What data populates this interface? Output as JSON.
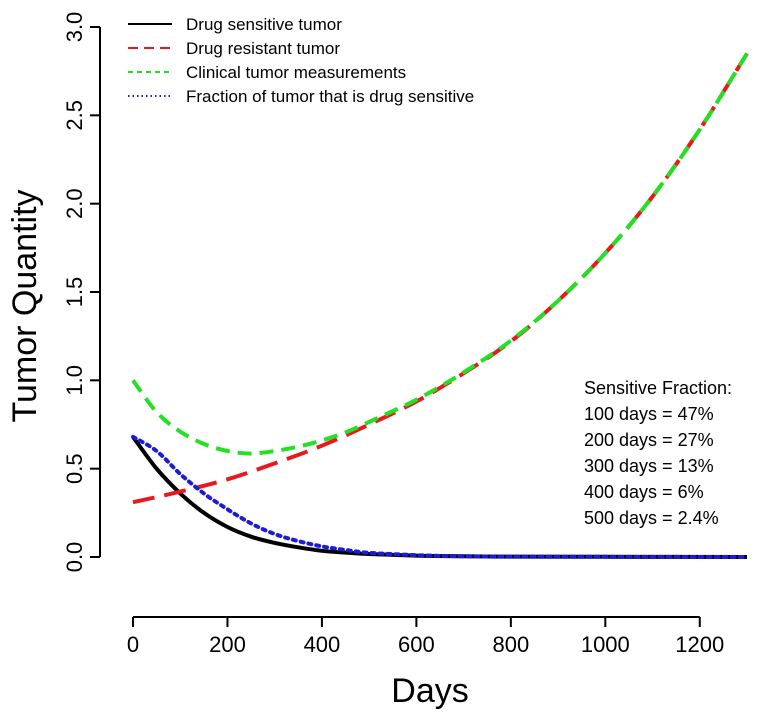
{
  "chart_data": {
    "type": "line",
    "title": "",
    "xlabel": "Days",
    "ylabel": "Tumor Quantity",
    "xlim": [
      0,
      1300
    ],
    "ylim": [
      0,
      3.0
    ],
    "x_ticks": [
      0,
      200,
      400,
      600,
      800,
      1000,
      1200
    ],
    "y_ticks": [
      0.0,
      0.5,
      1.0,
      1.5,
      2.0,
      2.5,
      3.0
    ],
    "x_tick_labels": [
      "0",
      "200",
      "400",
      "600",
      "800",
      "1000",
      "1200"
    ],
    "y_tick_labels": [
      "0.0",
      "0.5",
      "1.0",
      "1.5",
      "2.0",
      "2.5",
      "3.0"
    ],
    "grid": false,
    "legend_position": "top-left",
    "series": [
      {
        "name": "Drug sensitive tumor",
        "color": "#000000",
        "dash": "solid",
        "x": [
          0,
          50,
          100,
          150,
          200,
          250,
          300,
          350,
          400,
          450,
          500,
          600,
          700,
          800,
          1000,
          1300
        ],
        "y": [
          0.68,
          0.5,
          0.36,
          0.25,
          0.17,
          0.115,
          0.08,
          0.055,
          0.035,
          0.025,
          0.017,
          0.008,
          0.004,
          0.002,
          0.001,
          0.0
        ]
      },
      {
        "name": "Drug resistant tumor",
        "color": "#e8191c",
        "dash": "long-dash",
        "x": [
          0,
          100,
          200,
          300,
          400,
          500,
          600,
          700,
          800,
          900,
          1000,
          1100,
          1200,
          1300
        ],
        "y": [
          0.31,
          0.37,
          0.44,
          0.53,
          0.63,
          0.75,
          0.88,
          1.04,
          1.22,
          1.45,
          1.72,
          2.04,
          2.42,
          2.85
        ]
      },
      {
        "name": "Clinical tumor measurements",
        "color": "#22e022",
        "dash": "dash",
        "x": [
          0,
          50,
          100,
          150,
          200,
          250,
          300,
          350,
          400,
          450,
          500,
          600,
          700,
          800,
          900,
          1000,
          1100,
          1200,
          1300
        ],
        "y": [
          1.0,
          0.82,
          0.71,
          0.64,
          0.6,
          0.585,
          0.6,
          0.625,
          0.66,
          0.705,
          0.765,
          0.89,
          1.045,
          1.225,
          1.45,
          1.72,
          2.04,
          2.42,
          2.85
        ]
      },
      {
        "name": "Fraction of tumor that is drug sensitive",
        "color": "#1c1cd8",
        "dash": "dotted",
        "x": [
          0,
          50,
          100,
          150,
          200,
          250,
          300,
          350,
          400,
          450,
          500,
          600,
          700,
          800,
          1000,
          1300
        ],
        "y": [
          0.68,
          0.6,
          0.47,
          0.36,
          0.27,
          0.19,
          0.13,
          0.09,
          0.06,
          0.04,
          0.024,
          0.01,
          0.004,
          0.002,
          0.001,
          0.0
        ]
      }
    ],
    "annotation": {
      "lines": [
        "Sensitive Fraction:",
        "100 days = 47%",
        "200 days = 27%",
        "300 days = 13%",
        "400 days = 6%",
        "500 days = 2.4%"
      ]
    }
  }
}
